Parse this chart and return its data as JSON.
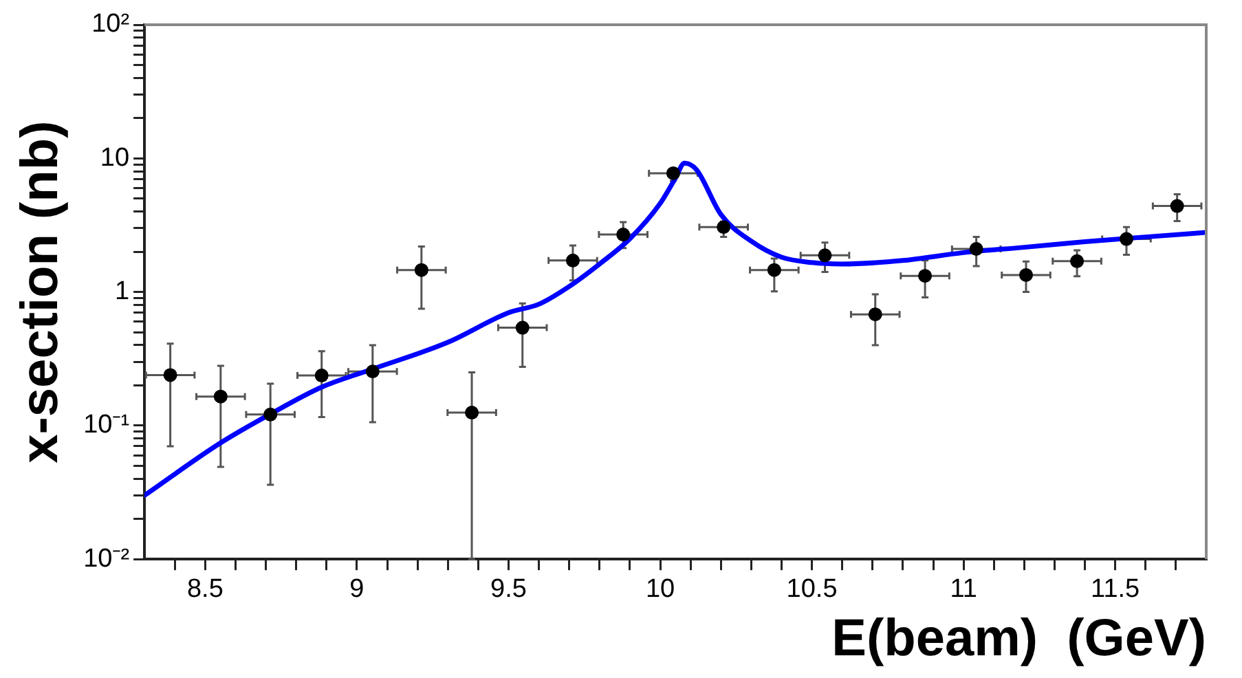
{
  "chart_data": {
    "type": "scatter",
    "xlabel": "E(beam)  (GeV)",
    "ylabel": "x-section (nb)",
    "xlim": [
      8.3,
      11.8
    ],
    "xticks": [
      {
        "value": 8.4,
        "label": null
      },
      8.5,
      {
        "value": 8.6,
        "label": null
      },
      {
        "value": 8.7,
        "label": null
      },
      {
        "value": 8.8,
        "label": null
      },
      {
        "value": 8.9,
        "label": null
      },
      9,
      {
        "value": 9.1,
        "label": null
      },
      {
        "value": 9.2,
        "label": null
      },
      {
        "value": 9.3,
        "label": null
      },
      {
        "value": 9.4,
        "label": null
      },
      9.5,
      {
        "value": 9.6,
        "label": null
      },
      {
        "value": 9.7,
        "label": null
      },
      {
        "value": 9.8,
        "label": null
      },
      {
        "value": 9.9,
        "label": null
      },
      10,
      {
        "value": 10.1,
        "label": null
      },
      {
        "value": 10.2,
        "label": null
      },
      {
        "value": 10.3,
        "label": null
      },
      {
        "value": 10.4,
        "label": null
      },
      10.5,
      {
        "value": 10.6,
        "label": null
      },
      {
        "value": 10.7,
        "label": null
      },
      {
        "value": 10.8,
        "label": null
      },
      {
        "value": 10.9,
        "label": null
      },
      11,
      {
        "value": 11.1,
        "label": null
      },
      {
        "value": 11.2,
        "label": null
      },
      {
        "value": 11.3,
        "label": null
      },
      {
        "value": 11.4,
        "label": null
      },
      11.5,
      {
        "value": 11.6,
        "label": null
      },
      {
        "value": 11.7,
        "label": null
      }
    ],
    "ylim": [
      0.01,
      100
    ],
    "yticks": [
      {
        "value": 0.01,
        "label": "10⁻²"
      },
      {
        "value": 0.02,
        "label": null
      },
      {
        "value": 0.03,
        "label": null
      },
      {
        "value": 0.04,
        "label": null
      },
      {
        "value": 0.05,
        "label": null
      },
      {
        "value": 0.06,
        "label": null
      },
      {
        "value": 0.07,
        "label": null
      },
      {
        "value": 0.08,
        "label": null
      },
      {
        "value": 0.09,
        "label": null
      },
      {
        "value": 0.1,
        "label": "10⁻¹"
      },
      {
        "value": 0.2,
        "label": null
      },
      {
        "value": 0.3,
        "label": null
      },
      {
        "value": 0.4,
        "label": null
      },
      {
        "value": 0.5,
        "label": null
      },
      {
        "value": 0.6,
        "label": null
      },
      {
        "value": 0.7,
        "label": null
      },
      {
        "value": 0.8,
        "label": null
      },
      {
        "value": 0.9,
        "label": null
      },
      1,
      {
        "value": 2,
        "label": null
      },
      {
        "value": 3,
        "label": null
      },
      {
        "value": 4,
        "label": null
      },
      {
        "value": 5,
        "label": null
      },
      {
        "value": 6,
        "label": null
      },
      {
        "value": 7,
        "label": null
      },
      {
        "value": 8,
        "label": null
      },
      {
        "value": 9,
        "label": null
      },
      10,
      {
        "value": 20,
        "label": null
      },
      {
        "value": 30,
        "label": null
      },
      {
        "value": 40,
        "label": null
      },
      {
        "value": 50,
        "label": null
      },
      {
        "value": 60,
        "label": null
      },
      {
        "value": 70,
        "label": null
      },
      {
        "value": 80,
        "label": null
      },
      {
        "value": 90,
        "label": null
      },
      {
        "value": 100,
        "label": "10²"
      }
    ],
    "log": "y",
    "grid": false,
    "legend": false,
    "series": [
      {
        "type": "scatter",
        "color": "#000000",
        "marker": "circle",
        "x": [
          8.385,
          8.551,
          8.715,
          8.884,
          9.052,
          9.213,
          9.379,
          9.546,
          9.712,
          9.878,
          10.043,
          10.209,
          10.376,
          10.543,
          10.709,
          10.873,
          11.042,
          11.206,
          11.374,
          11.537,
          11.704
        ],
        "values": [
          0.239,
          0.165,
          0.121,
          0.237,
          0.254,
          1.46,
          0.125,
          0.54,
          1.72,
          2.69,
          7.74,
          3.06,
          1.46,
          1.88,
          0.68,
          1.32,
          2.1,
          1.34,
          1.7,
          2.49,
          4.4
        ],
        "errors": [
          [
            0.07,
            0.41
          ],
          [
            0.049,
            0.28
          ],
          [
            0.036,
            0.206
          ],
          [
            0.116,
            0.36
          ],
          [
            0.106,
            0.4
          ],
          [
            0.75,
            2.19
          ],
          [
            0.01,
            0.25
          ],
          [
            0.275,
            0.82
          ],
          [
            1.22,
            2.23
          ],
          [
            2.13,
            3.33
          ],
          [
            6.79,
            8.36
          ],
          [
            2.58,
            3.36
          ],
          [
            1.01,
            1.78
          ],
          [
            1.41,
            2.34
          ],
          [
            0.4,
            0.96
          ],
          [
            0.91,
            1.72
          ],
          [
            1.56,
            2.58
          ],
          [
            1.0,
            1.69
          ],
          [
            1.31,
            2.05
          ],
          [
            1.9,
            3.06
          ],
          [
            3.39,
            5.38
          ]
        ],
        "xerrors": [
          0.08,
          0.08,
          0.08,
          0.08,
          0.08,
          0.08,
          0.08,
          0.08,
          0.08,
          0.08,
          0.08,
          0.08,
          0.08,
          0.08,
          0.08,
          0.08,
          0.08,
          0.08,
          0.08,
          0.08,
          0.08
        ]
      },
      {
        "type": "line",
        "color": "#0000ff",
        "marker": "none",
        "line_style": "solid",
        "x": [
          8.3,
          8.55,
          8.715,
          8.884,
          9.05,
          9.3,
          9.5,
          9.6,
          9.7,
          9.8,
          9.9,
          10.0,
          10.05,
          10.08,
          10.12,
          10.2,
          10.3,
          10.4,
          10.5,
          10.6,
          10.8,
          11.0,
          11.2,
          11.4,
          11.6,
          11.8
        ],
        "values": [
          0.03,
          0.074,
          0.122,
          0.194,
          0.264,
          0.42,
          0.7,
          0.81,
          1.1,
          1.62,
          2.5,
          4.6,
          7.1,
          9.2,
          8.2,
          3.8,
          2.4,
          1.82,
          1.66,
          1.62,
          1.72,
          1.97,
          2.16,
          2.38,
          2.58,
          2.79
        ]
      }
    ]
  }
}
